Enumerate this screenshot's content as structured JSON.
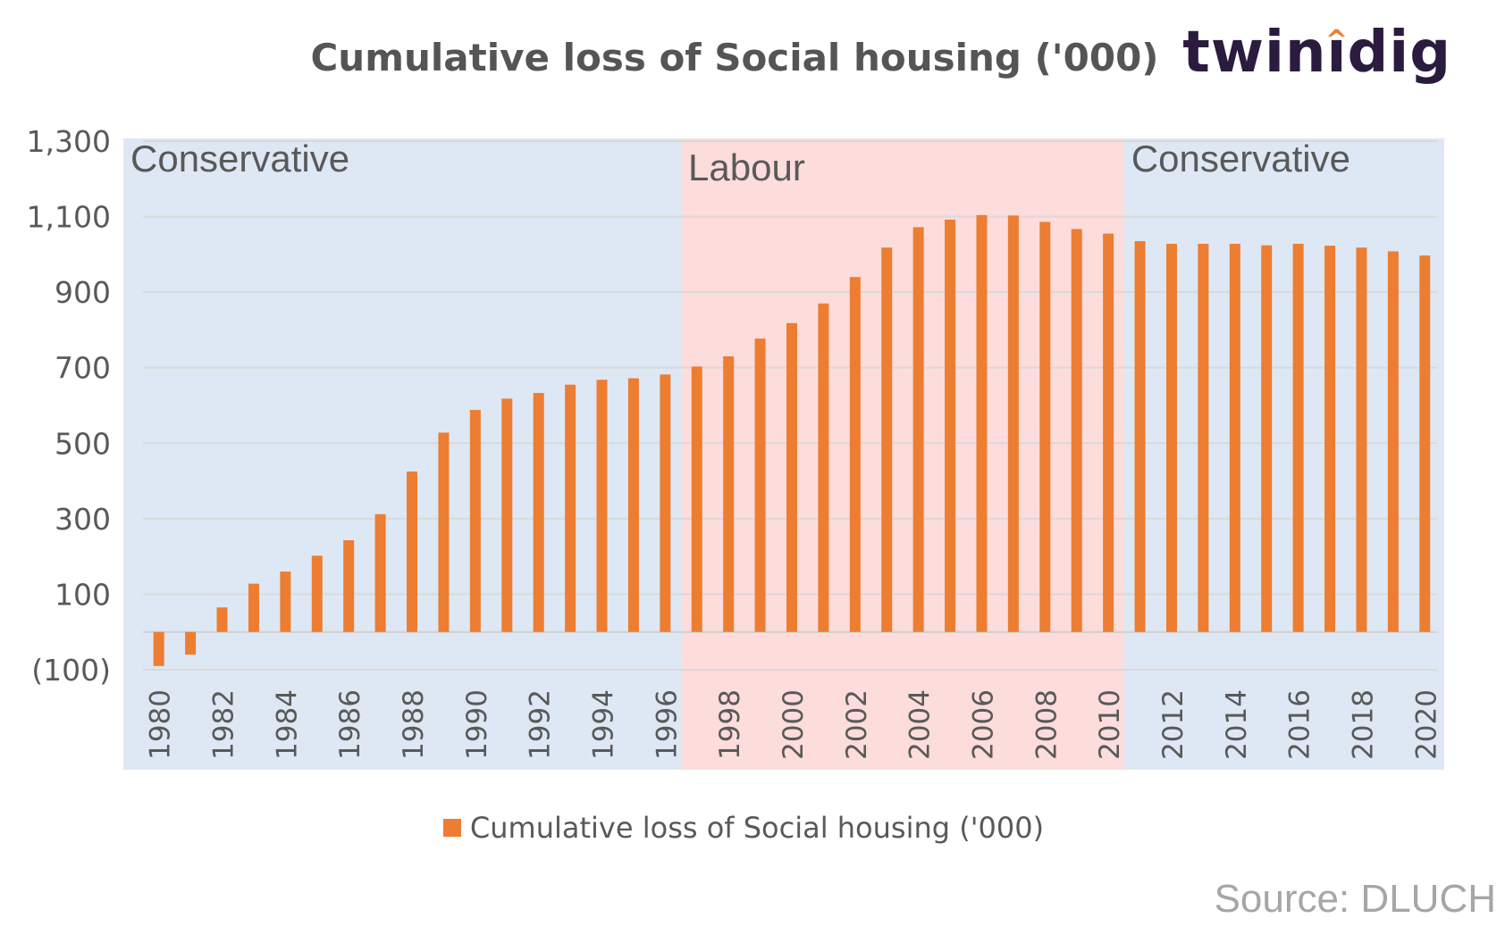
{
  "title": "Cumulative loss of Social housing ('000)",
  "logo": {
    "text": "twindig",
    "accent_color": "#ED7D31",
    "text_color": "#2B1B3F"
  },
  "source": "Source: DLUCH",
  "colors": {
    "bar": "#ED7D31",
    "conservative_band": "#DEE8F4",
    "labour_band": "#FDDCDC",
    "gridline": "#D9D9D9",
    "tick_text": "#595959",
    "band_text": "#595959"
  },
  "bands": [
    {
      "label": "Conservative",
      "from": 1980,
      "to": 1996
    },
    {
      "label": "Labour",
      "from": 1997,
      "to": 2010
    },
    {
      "label": "Conservative",
      "from": 2011,
      "to": 2020
    }
  ],
  "chart_data": {
    "type": "bar",
    "title": "Cumulative loss of Social housing ('000)",
    "legend": "bottom",
    "grid": true,
    "ylim": [
      -100,
      1300
    ],
    "yticks": [
      -100,
      100,
      300,
      500,
      700,
      900,
      1100,
      1300
    ],
    "ytick_labels": [
      "(100)",
      "100",
      "300",
      "500",
      "700",
      "900",
      "1,100",
      "1,300"
    ],
    "xtick_labels": [
      "1980",
      "1982",
      "1984",
      "1986",
      "1988",
      "1990",
      "1992",
      "1994",
      "1996",
      "1998",
      "2000",
      "2002",
      "2004",
      "2006",
      "2008",
      "2010",
      "2012",
      "2014",
      "2016",
      "2018",
      "2020"
    ],
    "categories": [
      1980,
      1981,
      1982,
      1983,
      1984,
      1985,
      1986,
      1987,
      1988,
      1989,
      1990,
      1991,
      1992,
      1993,
      1994,
      1995,
      1996,
      1997,
      1998,
      1999,
      2000,
      2001,
      2002,
      2003,
      2004,
      2005,
      2006,
      2007,
      2008,
      2009,
      2010,
      2011,
      2012,
      2013,
      2014,
      2015,
      2016,
      2017,
      2018,
      2019,
      2020
    ],
    "series": [
      {
        "name": "Cumulative loss of Social housing ('000)",
        "values": [
          -90,
          -60,
          65,
          128,
          160,
          202,
          243,
          312,
          425,
          528,
          588,
          618,
          633,
          655,
          668,
          672,
          682,
          703,
          730,
          777,
          818,
          870,
          940,
          1018,
          1072,
          1092,
          1104,
          1103,
          1086,
          1067,
          1055,
          1035,
          1028,
          1028,
          1028,
          1024,
          1028,
          1023,
          1018,
          1008,
          997
        ]
      }
    ]
  }
}
